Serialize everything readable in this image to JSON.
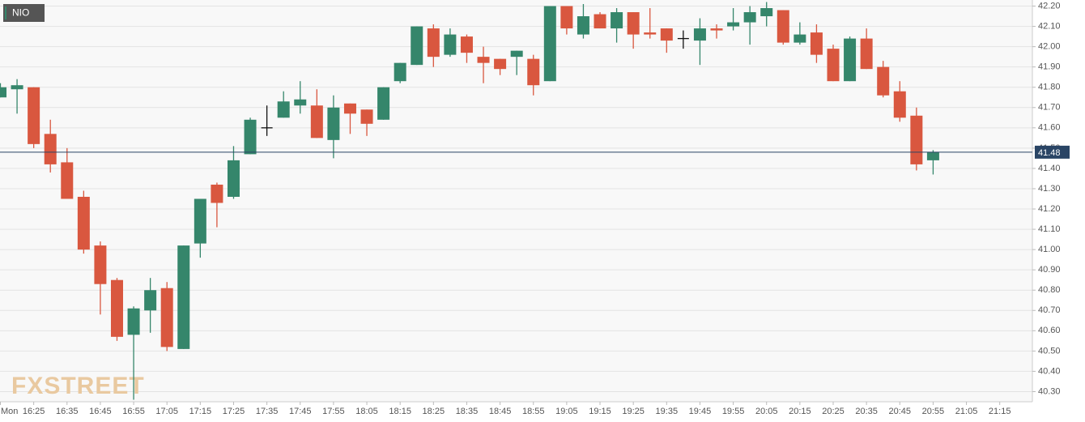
{
  "chart_data": {
    "type": "candlestick",
    "symbol": "NIO",
    "watermark": "FXSTREET",
    "x": [
      "16:15",
      "16:20",
      "16:25",
      "16:30",
      "16:35",
      "16:40",
      "16:45",
      "16:50",
      "16:55",
      "17:00",
      "17:05",
      "17:10",
      "17:15",
      "17:20",
      "17:25",
      "17:30",
      "17:35",
      "17:40",
      "17:45",
      "17:50",
      "17:55",
      "18:00",
      "18:05",
      "18:10",
      "18:15",
      "18:20",
      "18:25",
      "18:30",
      "18:35",
      "18:40",
      "18:45",
      "18:50",
      "18:55",
      "19:00",
      "19:05",
      "19:10",
      "19:15",
      "19:20",
      "19:25",
      "19:30",
      "19:35",
      "19:40",
      "19:45",
      "19:50",
      "19:55",
      "20:00",
      "20:05",
      "20:10",
      "20:15",
      "20:20",
      "20:25",
      "20:30",
      "20:35",
      "20:40",
      "20:45",
      "20:50",
      "20:55"
    ],
    "open": [
      41.75,
      41.79,
      41.8,
      41.57,
      41.43,
      41.26,
      41.02,
      40.85,
      40.58,
      40.7,
      40.81,
      40.51,
      41.03,
      41.32,
      41.26,
      41.47,
      41.6,
      41.65,
      41.71,
      41.71,
      41.54,
      41.72,
      41.69,
      41.64,
      41.83,
      41.91,
      42.09,
      41.96,
      42.05,
      41.95,
      41.94,
      41.95,
      41.94,
      41.83,
      42.2,
      42.06,
      42.16,
      42.09,
      42.17,
      42.07,
      42.09,
      42.04,
      42.03,
      42.09,
      42.1,
      42.12,
      42.15,
      42.18,
      42.02,
      42.07,
      41.99,
      41.83,
      42.04,
      41.9,
      41.78,
      41.66,
      41.44
    ],
    "high": [
      41.82,
      41.84,
      41.8,
      41.64,
      41.5,
      41.29,
      41.04,
      40.86,
      40.72,
      40.86,
      40.84,
      41.02,
      41.25,
      41.33,
      41.51,
      41.65,
      41.71,
      41.78,
      41.83,
      41.79,
      41.76,
      41.72,
      41.69,
      41.8,
      41.92,
      42.1,
      42.11,
      42.09,
      42.06,
      42.0,
      41.94,
      41.98,
      41.96,
      42.2,
      42.2,
      42.21,
      42.17,
      42.19,
      42.17,
      42.19,
      42.09,
      42.08,
      42.14,
      42.11,
      42.19,
      42.2,
      42.22,
      42.18,
      42.12,
      42.11,
      42.01,
      42.05,
      42.09,
      41.93,
      41.83,
      41.7,
      41.49
    ],
    "low": [
      41.75,
      41.67,
      41.5,
      41.38,
      41.25,
      40.98,
      40.68,
      40.55,
      40.26,
      40.59,
      40.5,
      40.51,
      40.96,
      41.11,
      41.25,
      41.47,
      41.56,
      41.65,
      41.67,
      41.55,
      41.45,
      41.57,
      41.56,
      41.64,
      41.82,
      41.91,
      41.9,
      41.95,
      41.92,
      41.82,
      41.86,
      41.86,
      41.76,
      41.83,
      42.06,
      42.04,
      42.09,
      42.02,
      41.99,
      42.04,
      41.97,
      41.99,
      41.91,
      42.04,
      42.08,
      42.01,
      42.1,
      42.01,
      42.01,
      41.92,
      41.83,
      41.83,
      41.89,
      41.75,
      41.63,
      41.39,
      41.37
    ],
    "close": [
      41.8,
      41.81,
      41.52,
      41.42,
      41.25,
      41.0,
      40.83,
      40.57,
      40.71,
      40.8,
      40.52,
      41.02,
      41.25,
      41.23,
      41.44,
      41.64,
      41.6,
      41.73,
      41.74,
      41.55,
      41.7,
      41.67,
      41.62,
      41.8,
      41.92,
      42.1,
      41.95,
      42.06,
      41.97,
      41.92,
      41.89,
      41.98,
      41.81,
      42.2,
      42.09,
      42.15,
      42.09,
      42.17,
      42.06,
      42.06,
      42.03,
      42.04,
      42.09,
      42.08,
      42.12,
      42.17,
      42.19,
      42.02,
      42.06,
      41.96,
      41.83,
      42.04,
      41.89,
      41.76,
      41.65,
      41.42,
      41.48
    ],
    "up_color": "#35866b",
    "down_color": "#d9573f",
    "flat_color": "#111111",
    "last_price": 41.48,
    "last_price_color": "#2a4565",
    "ylim": [
      40.25,
      42.23
    ],
    "yticks": [
      {
        "value": 40.3,
        "label": "40.30"
      },
      {
        "value": 40.4,
        "label": "40.40"
      },
      {
        "value": 40.5,
        "label": "40.50"
      },
      {
        "value": 40.6,
        "label": "40.60"
      },
      {
        "value": 40.7,
        "label": "40.70"
      },
      {
        "value": 40.8,
        "label": "40.80"
      },
      {
        "value": 40.9,
        "label": "40.90"
      },
      {
        "value": 41.0,
        "label": "41.00"
      },
      {
        "value": 41.1,
        "label": "41.10"
      },
      {
        "value": 41.2,
        "label": "41.20"
      },
      {
        "value": 41.3,
        "label": "41.30"
      },
      {
        "value": 41.4,
        "label": "41.40"
      },
      {
        "value": 41.5,
        "label": "41.50"
      },
      {
        "value": 41.6,
        "label": "41.60"
      },
      {
        "value": 41.7,
        "label": "41.70"
      },
      {
        "value": 41.8,
        "label": "41.80"
      },
      {
        "value": 41.9,
        "label": "41.90"
      },
      {
        "value": 42.0,
        "label": "42.00"
      },
      {
        "value": 42.1,
        "label": "42.10"
      },
      {
        "value": 42.2,
        "label": "42.20"
      }
    ],
    "xticks": [
      {
        "value": "16:15",
        "label": "Mon"
      },
      "16:25",
      "16:35",
      "16:45",
      "16:55",
      "17:05",
      "17:15",
      "17:25",
      "17:35",
      "17:45",
      "17:55",
      "18:05",
      "18:15",
      "18:25",
      "18:35",
      "18:45",
      "18:55",
      "19:05",
      "19:15",
      "19:25",
      "19:35",
      "19:45",
      "19:55",
      "20:05",
      "20:15",
      "20:25",
      "20:35",
      "20:45",
      "20:55",
      "21:05",
      "21:15"
    ],
    "grid": true
  }
}
